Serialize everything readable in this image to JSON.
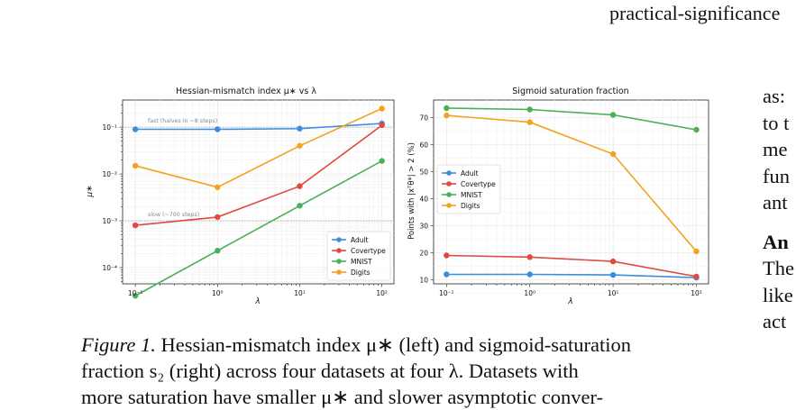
{
  "page": {
    "top_fragment": "practical-significance",
    "top_left_fragment": "(……) )",
    "top_mid_fragment": "…"
  },
  "caption": {
    "label": "Figure 1.",
    "line1": " Hessian-mismatch index μ∗ (left) and sigmoid-saturation",
    "line2": "fraction s₂ (right) across four datasets at four λ. Datasets with",
    "line3": "more saturation have smaller μ∗ and slower asymptotic conver-"
  },
  "right_column": {
    "lines": [
      "as:",
      "to t",
      "me",
      "fun",
      "ant"
    ],
    "heading": "An",
    "lines2": [
      "The",
      "like",
      "act"
    ]
  },
  "colors": {
    "Adult": "#3b8ede",
    "Covertype": "#e04a3f",
    "MNIST": "#4caf57",
    "Digits": "#f5a21c"
  },
  "chart_data": [
    {
      "type": "line",
      "title": "Hessian-mismatch index μ∗ vs λ",
      "xlabel": "λ",
      "ylabel": "μ∗",
      "x": [
        0.1,
        1,
        10,
        100
      ],
      "x_scale": "log",
      "y_scale": "log",
      "xlim": [
        0.07,
        140
      ],
      "ylim": [
        4.5e-05,
        0.38
      ],
      "x_tick_labels": [
        "10⁻¹",
        "10⁰",
        "10¹",
        "10²"
      ],
      "y_tick_labels": [
        "10⁻⁴",
        "10⁻³",
        "10⁻²",
        "10⁻¹"
      ],
      "grid": true,
      "legend_position": "lower-right",
      "reference_lines": [
        {
          "y": 0.1,
          "label": "fast (halves in ~8 steps)"
        },
        {
          "y": 0.001,
          "label": "slow (~700 steps)"
        }
      ],
      "series": [
        {
          "name": "Adult",
          "values": [
            0.09,
            0.09,
            0.093,
            0.12
          ]
        },
        {
          "name": "Covertype",
          "values": [
            0.0008,
            0.0012,
            0.0055,
            0.11
          ]
        },
        {
          "name": "MNIST",
          "values": [
            2.5e-05,
            0.00023,
            0.0021,
            0.019
          ]
        },
        {
          "name": "Digits",
          "values": [
            0.015,
            0.0052,
            0.04,
            0.25
          ]
        }
      ]
    },
    {
      "type": "line",
      "title": "Sigmoid saturation fraction",
      "xlabel": "λ",
      "ylabel": "Points with |xᵀθ*| > 2 (%)",
      "x": [
        0.1,
        1,
        10,
        100
      ],
      "x_scale": "log",
      "xlim": [
        0.07,
        140
      ],
      "ylim": [
        8.5,
        76.5
      ],
      "x_tick_labels": [
        "10⁻¹",
        "10⁰",
        "10¹",
        "10²"
      ],
      "y_ticks": [
        10,
        20,
        30,
        40,
        50,
        60,
        70
      ],
      "grid": true,
      "legend_position": "upper-left",
      "series": [
        {
          "name": "Adult",
          "values": [
            12.0,
            12.0,
            11.8,
            10.8
          ]
        },
        {
          "name": "Covertype",
          "values": [
            19.0,
            18.4,
            16.8,
            11.2
          ]
        },
        {
          "name": "MNIST",
          "values": [
            73.5,
            73.0,
            71.0,
            65.5
          ]
        },
        {
          "name": "Digits",
          "values": [
            70.8,
            68.3,
            56.5,
            20.5
          ]
        }
      ]
    }
  ]
}
